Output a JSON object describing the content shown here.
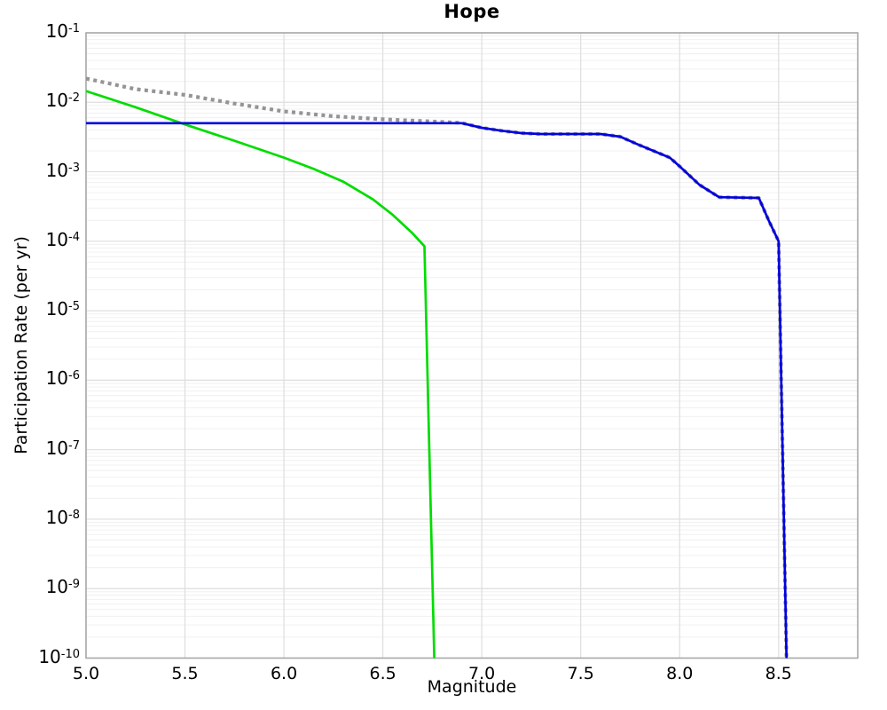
{
  "title": "Hope",
  "chart_data": {
    "type": "line",
    "title": "Hope",
    "xlabel": "Magnitude",
    "ylabel": "Participation Rate (per yr)",
    "xlim": [
      5.0,
      8.9
    ],
    "ylim": [
      1e-10,
      0.1
    ],
    "ylim_exp": [
      -10,
      -1
    ],
    "xticks": [
      5.0,
      5.5,
      6.0,
      6.5,
      7.0,
      7.5,
      8.0,
      8.5
    ],
    "ytick_exponents": [
      -1,
      -2,
      -3,
      -4,
      -5,
      -6,
      -7,
      -8,
      -9,
      -10
    ],
    "grid": {
      "vertical_major": true,
      "horizontal_major": true,
      "horizontal_log_minor": true
    },
    "legend": {
      "visible": false
    },
    "colors": {
      "blue_line": "#0000e0",
      "green_line": "#00dc00",
      "gray_dotted": "#949494",
      "grid_major": "#dedede",
      "grid_minor": "#f0f0f0",
      "spine": "#a8a8a8",
      "text": "#000000"
    },
    "series": [
      {
        "name": "gray-dotted-reference",
        "color": "#949494",
        "style": "dotted",
        "width": 4.2,
        "points": [
          [
            5.0,
            0.022
          ],
          [
            5.25,
            0.0155
          ],
          [
            5.5,
            0.0128
          ],
          [
            5.75,
            0.0096
          ],
          [
            6.0,
            0.0074
          ],
          [
            6.25,
            0.0063
          ],
          [
            6.5,
            0.0057
          ],
          [
            6.75,
            0.0053
          ],
          [
            6.9,
            0.00505
          ],
          [
            7.0,
            0.0043
          ],
          [
            7.1,
            0.0039
          ],
          [
            7.2,
            0.0036
          ],
          [
            7.3,
            0.0035
          ],
          [
            7.6,
            0.0035
          ],
          [
            7.7,
            0.0032
          ],
          [
            7.8,
            0.0024
          ],
          [
            7.95,
            0.0016
          ],
          [
            8.0,
            0.0012
          ],
          [
            8.1,
            0.00065
          ],
          [
            8.2,
            0.00043
          ],
          [
            8.4,
            0.00042
          ],
          [
            8.45,
            0.0002
          ],
          [
            8.5,
            0.0001
          ],
          [
            8.54,
            1e-10
          ]
        ]
      },
      {
        "name": "green-hazard-curve",
        "color": "#00dc00",
        "style": "solid",
        "width": 2.7,
        "points": [
          [
            5.0,
            0.0145
          ],
          [
            5.25,
            0.0085
          ],
          [
            5.5,
            0.0048
          ],
          [
            5.75,
            0.0028
          ],
          [
            6.0,
            0.0016
          ],
          [
            6.15,
            0.0011
          ],
          [
            6.3,
            0.00072
          ],
          [
            6.45,
            0.0004
          ],
          [
            6.55,
            0.00024
          ],
          [
            6.65,
            0.00013
          ],
          [
            6.71,
            8.5e-05
          ],
          [
            6.76,
            1e-10
          ]
        ]
      },
      {
        "name": "blue-participation-curve",
        "color": "#0000e0",
        "style": "solid",
        "width": 2.7,
        "points": [
          [
            5.0,
            0.005
          ],
          [
            6.9,
            0.005
          ],
          [
            7.0,
            0.0043
          ],
          [
            7.1,
            0.0039
          ],
          [
            7.2,
            0.0036
          ],
          [
            7.3,
            0.0035
          ],
          [
            7.6,
            0.0035
          ],
          [
            7.7,
            0.0032
          ],
          [
            7.8,
            0.0024
          ],
          [
            7.95,
            0.0016
          ],
          [
            8.0,
            0.0012
          ],
          [
            8.1,
            0.00065
          ],
          [
            8.2,
            0.00043
          ],
          [
            8.4,
            0.00042
          ],
          [
            8.45,
            0.0002
          ],
          [
            8.5,
            0.0001
          ],
          [
            8.54,
            1e-10
          ]
        ]
      }
    ]
  }
}
